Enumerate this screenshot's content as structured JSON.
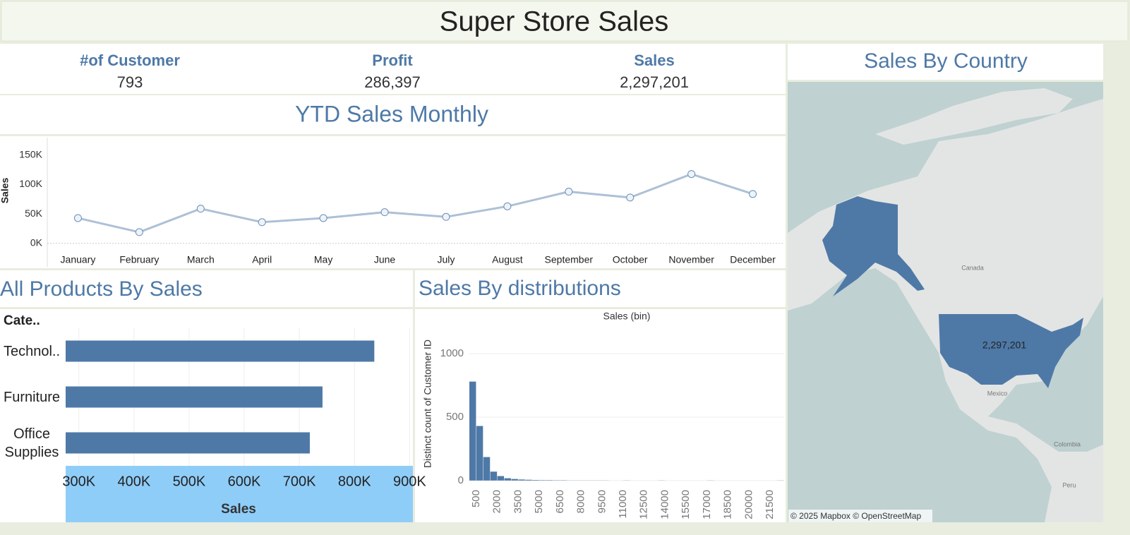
{
  "header": {
    "title": "Super Store Sales"
  },
  "kpis": [
    {
      "label": "#of Customer",
      "value": "793"
    },
    {
      "label": "Profit",
      "value": "286,397"
    },
    {
      "label": "Sales",
      "value": "2,297,201"
    }
  ],
  "map": {
    "title": "Sales By Country",
    "value_label": "2,297,201",
    "place_labels": [
      "Canada",
      "Mexico",
      "Colombia",
      "Peru"
    ],
    "attribution": "© 2025 Mapbox © OpenStreetMap"
  },
  "chart_data": [
    {
      "type": "line",
      "title": "YTD Sales Monthly",
      "y_label": "Sales",
      "categories": [
        "January",
        "February",
        "March",
        "April",
        "May",
        "June",
        "July",
        "August",
        "September",
        "October",
        "November",
        "December"
      ],
      "values": [
        43000,
        19000,
        59000,
        36000,
        43000,
        53000,
        45000,
        63000,
        88000,
        78000,
        118000,
        84000
      ],
      "color": "#adc0d6",
      "ylim": [
        -40000,
        180000
      ],
      "yticks": [
        {
          "value": 0,
          "label": "0K"
        },
        {
          "value": 50000,
          "label": "50K"
        },
        {
          "value": 100000,
          "label": "100K"
        },
        {
          "value": 150000,
          "label": "150K"
        }
      ]
    },
    {
      "type": "hbar",
      "title": "All Products By Sales",
      "category_label": "Cate..",
      "x_label": "Sales",
      "categories": [
        "Technol..",
        "Furniture",
        "Office Supplies"
      ],
      "values": [
        836000,
        742000,
        719000
      ],
      "color": "#4e79a7",
      "xlim": [
        276000,
        906000
      ],
      "xticks": [
        {
          "value": 300000,
          "label": "300K"
        },
        {
          "value": 400000,
          "label": "400K"
        },
        {
          "value": 500000,
          "label": "500K"
        },
        {
          "value": 600000,
          "label": "600K"
        },
        {
          "value": 700000,
          "label": "700K"
        },
        {
          "value": 800000,
          "label": "800K"
        },
        {
          "value": 900000,
          "label": "900K"
        }
      ],
      "grid": true
    },
    {
      "type": "histogram",
      "title": "Sales By distributions",
      "x_label": "Sales (bin)",
      "y_label": "Distinct count of Customer ID",
      "bins": [
        0,
        500,
        1000,
        1500,
        2000,
        2500,
        3000,
        3500,
        4000,
        4500,
        5000,
        5500,
        6000,
        6500,
        7000,
        7500,
        8000,
        8500,
        9000,
        9500,
        10000,
        10500,
        11000,
        11500,
        12000,
        12500,
        13000,
        13500,
        14000,
        14500,
        15000,
        15500,
        16000,
        16500,
        17000,
        17500,
        18000,
        18500,
        19000,
        19500,
        20000,
        20500,
        21000,
        21500,
        22000,
        22500
      ],
      "values": [
        780,
        430,
        185,
        70,
        35,
        18,
        12,
        8,
        6,
        4,
        3,
        3,
        2,
        2,
        1,
        1,
        1,
        1,
        1,
        1,
        0,
        0,
        1,
        0,
        0,
        0,
        0,
        1,
        0,
        0,
        0,
        0,
        0,
        0,
        1,
        0,
        0,
        0,
        0,
        0,
        0,
        0,
        0,
        0,
        1
      ],
      "color": "#4e79a7",
      "xlim": [
        0,
        22500
      ],
      "ylim": [
        -40,
        1240
      ],
      "xticks": [
        500,
        2000,
        3500,
        5000,
        6500,
        8000,
        9500,
        11000,
        12500,
        14000,
        15500,
        17000,
        18500,
        20000,
        21500
      ],
      "yticks": [
        0,
        500,
        1000
      ],
      "grid": true
    }
  ]
}
